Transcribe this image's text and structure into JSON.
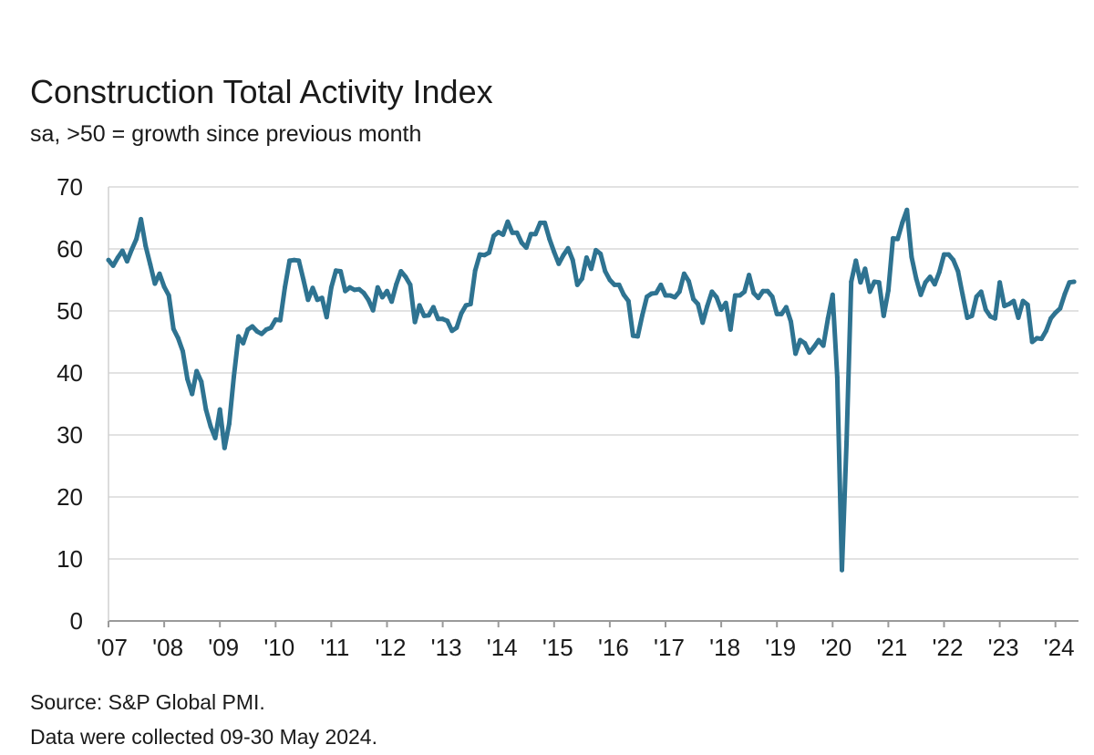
{
  "chart_data": {
    "type": "line",
    "title": "Construction Total Activity Index",
    "subtitle": "sa, >50 = growth since previous month",
    "ylim": [
      0,
      70
    ],
    "yticks": [
      0,
      10,
      20,
      30,
      40,
      50,
      60,
      70
    ],
    "xticks": [
      "'07",
      "'08",
      "'09",
      "'10",
      "'11",
      "'12",
      "'13",
      "'14",
      "'15",
      "'16",
      "'17",
      "'18",
      "'19",
      "'20",
      "'21",
      "'22",
      "'23",
      "'24"
    ],
    "x_start": "2007-01",
    "x_end": "2024-05",
    "grid": true,
    "line_color": "#2e7391",
    "series": [
      {
        "name": "",
        "values": [
          58.2,
          57.3,
          58.6,
          59.7,
          58.0,
          59.9,
          61.6,
          64.8,
          60.5,
          57.5,
          54.4,
          56.0,
          53.9,
          52.5,
          47.1,
          45.6,
          43.5,
          39.0,
          36.6,
          40.3,
          38.6,
          34.1,
          31.4,
          29.5,
          34.1,
          27.9,
          31.8,
          39.4,
          45.9,
          44.8,
          47.0,
          47.5,
          46.7,
          46.3,
          47.0,
          47.3,
          48.6,
          48.5,
          53.8,
          58.1,
          58.2,
          58.1,
          55.0,
          51.8,
          53.7,
          51.8,
          52.1,
          49.0,
          53.8,
          56.5,
          56.4,
          53.2,
          53.8,
          53.4,
          53.5,
          52.9,
          51.8,
          50.1,
          53.8,
          52.2,
          53.2,
          51.5,
          54.3,
          56.4,
          55.5,
          54.2,
          48.2,
          50.9,
          49.2,
          49.3,
          50.6,
          48.7,
          48.7,
          48.4,
          46.8,
          47.3,
          49.6,
          50.9,
          51.1,
          56.5,
          59.1,
          59.0,
          59.4,
          62.1,
          62.7,
          62.3,
          64.4,
          62.6,
          62.6,
          61.0,
          60.2,
          62.4,
          62.4,
          64.2,
          64.2,
          61.6,
          59.5,
          57.6,
          59.0,
          60.1,
          58.2,
          54.2,
          55.2,
          58.6,
          56.8,
          59.8,
          59.2,
          56.4,
          55.0,
          54.2,
          54.2,
          52.6,
          51.6,
          46.0,
          45.9,
          49.3,
          52.3,
          52.8,
          52.9,
          54.2,
          52.5,
          52.5,
          52.2,
          53.1,
          56.0,
          54.8,
          51.9,
          51.1,
          48.1,
          50.8,
          53.1,
          52.2,
          50.2,
          51.3,
          47.0,
          52.5,
          52.5,
          53.1,
          55.8,
          52.9,
          52.1,
          53.2,
          53.2,
          52.3,
          49.5,
          49.5,
          50.6,
          48.3,
          43.1,
          45.3,
          44.8,
          43.3,
          44.2,
          45.3,
          44.4,
          48.8,
          52.6,
          39.3,
          8.2,
          28.9,
          54.7,
          58.1,
          54.6,
          56.8,
          53.1,
          54.7,
          54.6,
          49.2,
          53.3,
          61.7,
          61.6,
          64.2,
          66.3,
          58.7,
          55.2,
          52.6,
          54.6,
          55.5,
          54.3,
          56.3,
          59.1,
          59.1,
          58.2,
          56.4,
          52.6,
          48.9,
          49.2,
          52.3,
          53.1,
          50.2,
          49.1,
          48.8,
          54.6,
          50.8,
          51.1,
          51.6,
          48.9,
          51.6,
          51.0,
          45.0,
          45.6,
          45.5,
          46.8,
          48.8,
          49.7,
          50.4,
          52.7,
          54.6,
          54.7
        ]
      }
    ]
  },
  "source": "Source: S&P Global PMI.",
  "collected": "Data were collected 09-30 May 2024."
}
